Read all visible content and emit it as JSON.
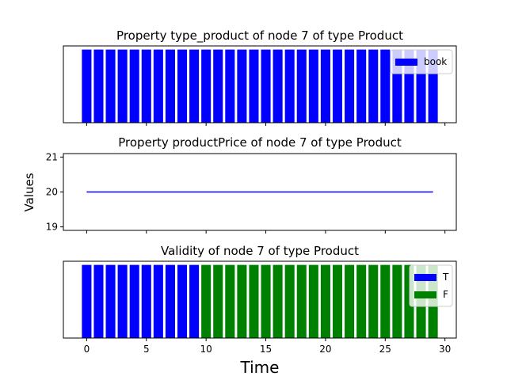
{
  "figure": {
    "ylabel": "Values",
    "xlabel": "Time"
  },
  "chart_data": [
    {
      "type": "bar",
      "title": "Property type_product of node 7 of type Product",
      "x": [
        0,
        1,
        2,
        3,
        4,
        5,
        6,
        7,
        8,
        9,
        10,
        11,
        12,
        13,
        14,
        15,
        16,
        17,
        18,
        19,
        20,
        21,
        22,
        23,
        24,
        25,
        26,
        27,
        28,
        29
      ],
      "series": [
        {
          "name": "book",
          "color": "#0000ff",
          "values": [
            1,
            1,
            1,
            1,
            1,
            1,
            1,
            1,
            1,
            1,
            1,
            1,
            1,
            1,
            1,
            1,
            1,
            1,
            1,
            1,
            1,
            1,
            1,
            1,
            1,
            1,
            1,
            1,
            1,
            1
          ]
        }
      ],
      "ylim": [
        0,
        1.05
      ],
      "yticks": [],
      "legend": "upper-right",
      "grid": false
    },
    {
      "type": "line",
      "title": "Property productPrice of node 7 of type Product",
      "x": [
        0,
        29
      ],
      "series": [
        {
          "color": "#0000ff",
          "values": [
            20,
            20
          ]
        }
      ],
      "ylim": [
        18.9,
        21.1
      ],
      "yticks": [
        "19",
        "20",
        "21"
      ],
      "ytick_values": [
        19,
        20,
        21
      ],
      "grid": false
    },
    {
      "type": "bar",
      "title": "Validity of node 7 of type Product",
      "x": [
        0,
        1,
        2,
        3,
        4,
        5,
        6,
        7,
        8,
        9,
        10,
        11,
        12,
        13,
        14,
        15,
        16,
        17,
        18,
        19,
        20,
        21,
        22,
        23,
        24,
        25,
        26,
        27,
        28,
        29
      ],
      "series": [
        {
          "name": "T",
          "color": "#0000ff",
          "values": [
            1,
            1,
            1,
            1,
            1,
            1,
            1,
            1,
            1,
            1,
            0,
            0,
            0,
            0,
            0,
            0,
            0,
            0,
            0,
            0,
            0,
            0,
            0,
            0,
            0,
            0,
            0,
            0,
            0,
            0
          ]
        },
        {
          "name": "F",
          "color": "#008000",
          "values": [
            0,
            0,
            0,
            0,
            0,
            0,
            0,
            0,
            0,
            0,
            1,
            1,
            1,
            1,
            1,
            1,
            1,
            1,
            1,
            1,
            1,
            1,
            1,
            1,
            1,
            1,
            1,
            1,
            1,
            1
          ]
        }
      ],
      "ylim": [
        0,
        1.05
      ],
      "yticks": [],
      "legend": "upper-right",
      "grid": false
    }
  ],
  "xaxis": {
    "xlim": [
      -1.95,
      30.95
    ],
    "ticks": [
      "0",
      "5",
      "10",
      "15",
      "20",
      "25",
      "30"
    ],
    "tick_values": [
      0,
      5,
      10,
      15,
      20,
      25,
      30
    ]
  }
}
